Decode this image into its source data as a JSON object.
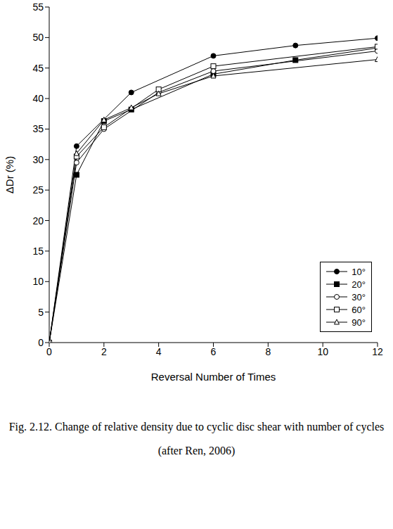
{
  "chart_data": {
    "type": "line",
    "title": "Fig. 2.12. Change of relative density due to cyclic disc shear with number of cycles",
    "subtitle": "(after Ren, 2006)",
    "x_label": "Reversal Number of Times",
    "y_label": "ΔDr (%)",
    "xlim": [
      0,
      12
    ],
    "xticks": [
      0,
      2,
      4,
      6,
      8,
      10,
      12
    ],
    "ylim": [
      0,
      55
    ],
    "yticks": [
      0,
      5,
      10,
      15,
      20,
      25,
      30,
      35,
      40,
      45,
      50,
      55
    ],
    "grid": false,
    "legend": "lower right",
    "series": [
      {
        "name": "10°",
        "color": "#000000",
        "marker": "circle",
        "x": [
          0,
          1,
          3,
          6,
          9,
          12
        ],
        "values": [
          0,
          32.2,
          41,
          47,
          48.7,
          49.9
        ]
      },
      {
        "name": "20°",
        "color": "#000000",
        "marker": "square",
        "x": [
          0,
          1,
          2,
          3,
          6,
          9,
          12
        ],
        "values": [
          0,
          27.5,
          36.3,
          38.2,
          44,
          46.3,
          48.3
        ]
      },
      {
        "name": "30°",
        "color": "#000000",
        "marker": "open_circle",
        "x": [
          0,
          1,
          2,
          4,
          6,
          12
        ],
        "values": [
          0,
          29.5,
          35,
          41,
          44.5,
          47.8
        ]
      },
      {
        "name": "60°",
        "color": "#000000",
        "marker": "open_square",
        "x": [
          0,
          1,
          2,
          4,
          6,
          12
        ],
        "values": [
          0,
          30.5,
          35.3,
          41.5,
          45.3,
          48.5
        ]
      },
      {
        "name": "90°",
        "color": "#000000",
        "marker": "open_triangle",
        "x": [
          0,
          1,
          2,
          3,
          4,
          6,
          12
        ],
        "values": [
          0,
          31,
          36.5,
          38.5,
          40.8,
          43.7,
          46.4
        ]
      }
    ]
  }
}
